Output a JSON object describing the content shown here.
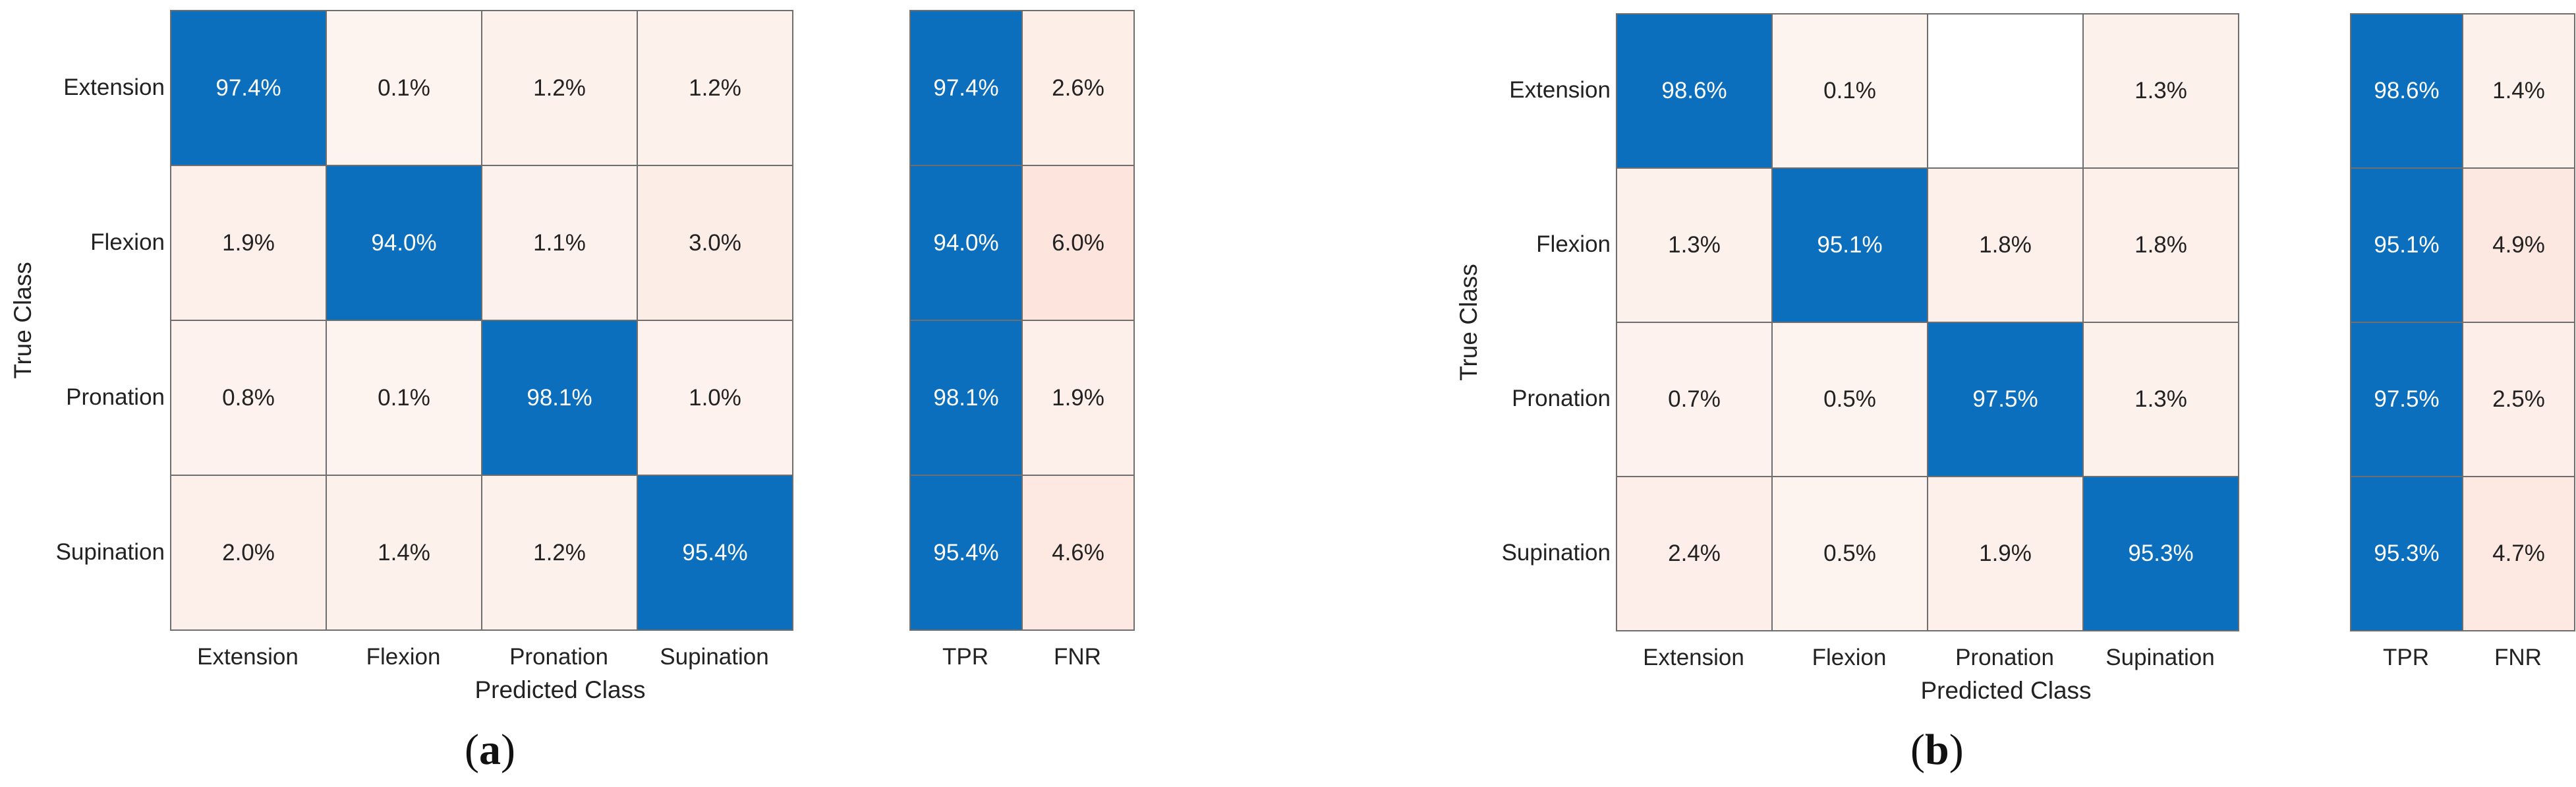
{
  "colors": {
    "diagonal": "#0b6fbd",
    "cell_text_dark": "#222222",
    "cell_text_light": "#ffffff",
    "border": "#6e6e6e"
  },
  "chart_data": [
    {
      "type": "heatmap",
      "panel_label": "a",
      "ylabel": "True Class",
      "xlabel": "Predicted Class",
      "rows": [
        "Extension",
        "Flexion",
        "Pronation",
        "Supination"
      ],
      "cols": [
        "Extension",
        "Flexion",
        "Pronation",
        "Supination"
      ],
      "values": [
        [
          "97.4%",
          "0.1%",
          "1.2%",
          "1.2%"
        ],
        [
          "1.9%",
          "94.0%",
          "1.1%",
          "3.0%"
        ],
        [
          "0.8%",
          "0.1%",
          "98.1%",
          "1.0%"
        ],
        [
          "2.0%",
          "1.4%",
          "1.2%",
          "95.4%"
        ]
      ],
      "summary_cols": [
        "TPR",
        "FNR"
      ],
      "summary_values": [
        [
          "97.4%",
          "2.6%"
        ],
        [
          "94.0%",
          "6.0%"
        ],
        [
          "98.1%",
          "1.9%"
        ],
        [
          "95.4%",
          "4.6%"
        ]
      ]
    },
    {
      "type": "heatmap",
      "panel_label": "b",
      "ylabel": "True Class",
      "xlabel": "Predicted Class",
      "rows": [
        "Extension",
        "Flexion",
        "Pronation",
        "Supination"
      ],
      "cols": [
        "Extension",
        "Flexion",
        "Pronation",
        "Supination"
      ],
      "values": [
        [
          "98.6%",
          "0.1%",
          "",
          "1.3%"
        ],
        [
          "1.3%",
          "95.1%",
          "1.8%",
          "1.8%"
        ],
        [
          "0.7%",
          "0.5%",
          "97.5%",
          "1.3%"
        ],
        [
          "2.4%",
          "0.5%",
          "1.9%",
          "95.3%"
        ]
      ],
      "summary_cols": [
        "TPR",
        "FNR"
      ],
      "summary_values": [
        [
          "98.6%",
          "1.4%"
        ],
        [
          "95.1%",
          "4.9%"
        ],
        [
          "97.5%",
          "2.5%"
        ],
        [
          "95.3%",
          "4.7%"
        ]
      ]
    }
  ]
}
